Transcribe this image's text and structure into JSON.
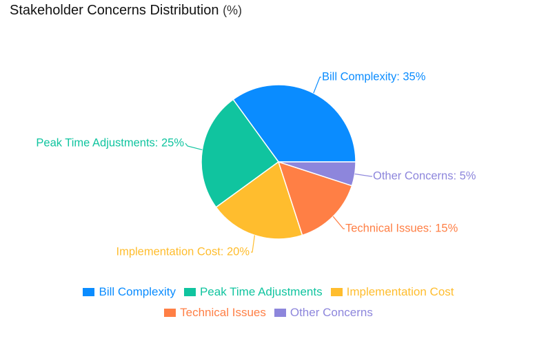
{
  "title": "Stakeholder Concerns Distribution",
  "title_unit": "(%)",
  "chart_data": {
    "type": "pie",
    "title": "Stakeholder Concerns Distribution (%)",
    "slices": [
      {
        "name": "Bill Complexity",
        "value": 35,
        "color": "#0a8cff",
        "label": "Bill Complexity: 35%"
      },
      {
        "name": "Peak Time Adjustments",
        "value": 25,
        "color": "#10c49f",
        "label": "Peak Time Adjustments: 25%"
      },
      {
        "name": "Implementation Cost",
        "value": 20,
        "color": "#ffbd2e",
        "label": "Implementation Cost: 20%"
      },
      {
        "name": "Technical Issues",
        "value": 15,
        "color": "#ff7f45",
        "label": "Technical Issues: 15%"
      },
      {
        "name": "Other Concerns",
        "value": 5,
        "color": "#8d86dc",
        "label": "Other Concerns: 5%"
      }
    ],
    "legend_position": "bottom"
  }
}
